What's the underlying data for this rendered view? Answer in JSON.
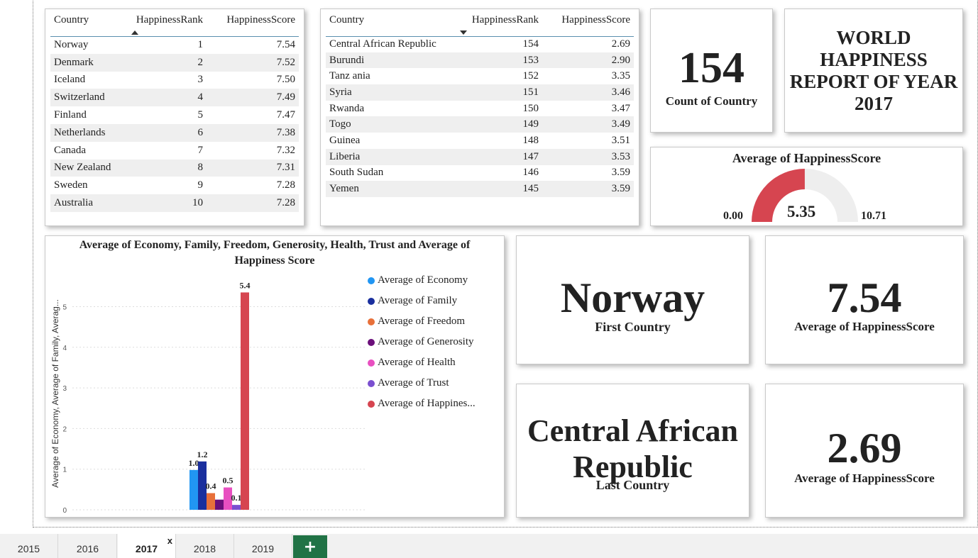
{
  "top_table": {
    "headers": [
      "Country",
      "HappinessRank",
      "HappinessScore"
    ],
    "rows": [
      [
        "Norway",
        "1",
        "7.54"
      ],
      [
        "Denmark",
        "2",
        "7.52"
      ],
      [
        "Iceland",
        "3",
        "7.50"
      ],
      [
        "Switzerland",
        "4",
        "7.49"
      ],
      [
        "Finland",
        "5",
        "7.47"
      ],
      [
        "Netherlands",
        "6",
        "7.38"
      ],
      [
        "Canada",
        "7",
        "7.32"
      ],
      [
        "New Zealand",
        "8",
        "7.31"
      ],
      [
        "Sweden",
        "9",
        "7.28"
      ],
      [
        "Australia",
        "10",
        "7.28"
      ]
    ]
  },
  "bottom_table": {
    "headers": [
      "Country",
      "HappinessRank",
      "HappinessScore"
    ],
    "rows": [
      [
        "Central African Republic",
        "154",
        "2.69"
      ],
      [
        "Burundi",
        "153",
        "2.90"
      ],
      [
        "Tanz ania",
        "152",
        "3.35"
      ],
      [
        "Syria",
        "151",
        "3.46"
      ],
      [
        "Rwanda",
        "150",
        "3.47"
      ],
      [
        "Togo",
        "149",
        "3.49"
      ],
      [
        "Guinea",
        "148",
        "3.51"
      ],
      [
        "Liberia",
        "147",
        "3.53"
      ],
      [
        "South Sudan",
        "146",
        "3.59"
      ],
      [
        "Yemen",
        "145",
        "3.59"
      ]
    ]
  },
  "count_card": {
    "value": "154",
    "label": "Count of Country"
  },
  "title_card": {
    "text": "WORLD HAPPINESS REPORT OF YEAR 2017"
  },
  "gauge": {
    "title": "Average of HappinessScore",
    "min": 0.0,
    "max": 10.71,
    "value": 5.35,
    "min_label": "0.00",
    "max_label": "10.71",
    "value_label": "5.35",
    "fill_color": "#d64550",
    "track_color": "#eeeeee"
  },
  "first_country": {
    "value": "Norway",
    "label": "First Country"
  },
  "first_score": {
    "value": "7.54",
    "label": "Average of HappinessScore"
  },
  "last_country": {
    "value": "Central African Republic",
    "label": "Last Country"
  },
  "last_score": {
    "value": "2.69",
    "label": "Average of HappinessScore"
  },
  "chart_data": {
    "type": "bar",
    "title": "Average of Economy, Family, Freedom, Generosity, Health, Trust and Average of Happiness Score",
    "ylabel": "Average of Economy, Average of Family, Averag...",
    "ylim": [
      0,
      5.4
    ],
    "yticks": [
      0,
      1,
      2,
      3,
      4,
      5
    ],
    "grid": true,
    "legend_position": "right",
    "series": [
      {
        "name": "Average of Economy",
        "value": 0.98,
        "label": "1.0",
        "color": "#2196f3"
      },
      {
        "name": "Average of Family",
        "value": 1.19,
        "label": "1.2",
        "color": "#1a2f9e"
      },
      {
        "name": "Average of Freedom",
        "value": 0.41,
        "label": "0.4",
        "color": "#e8703a"
      },
      {
        "name": "Average of Generosity",
        "value": 0.25,
        "label": "",
        "color": "#6b0f7a"
      },
      {
        "name": "Average of Health",
        "value": 0.55,
        "label": "0.5",
        "color": "#e84fc0"
      },
      {
        "name": "Average of Trust",
        "value": 0.12,
        "label": "0.1",
        "color": "#7a4fd0"
      },
      {
        "name": "Average of Happines...",
        "value": 5.35,
        "label": "5.4",
        "color": "#d64550"
      }
    ]
  },
  "tabs": {
    "items": [
      "2015",
      "2016",
      "2017",
      "2018",
      "2019"
    ],
    "active": "2017",
    "close": "x",
    "add": "+"
  }
}
